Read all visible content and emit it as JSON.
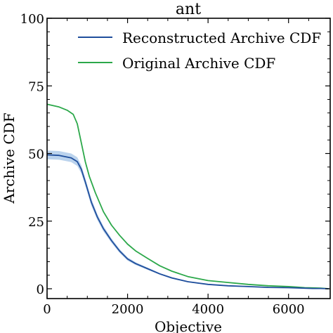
{
  "chart_data": {
    "type": "line",
    "title": "ant",
    "xlabel": "Objective",
    "ylabel": "Archive CDF",
    "xlim": [
      0,
      7000
    ],
    "ylim": [
      0,
      100
    ],
    "x_ticks": [
      "0",
      "2000",
      "4000",
      "6000"
    ],
    "y_ticks": [
      "0",
      "25",
      "50",
      "75",
      "100"
    ],
    "legend_position": "top-right",
    "grid": false,
    "series": [
      {
        "name": "Reconstructed Archive CDF",
        "color": "#1f4e9c",
        "band_color": "#aac8e8",
        "band_halfwidth": [
          1.6,
          1.6,
          1.6,
          1.6,
          1.5,
          1.4,
          1.3,
          1.1,
          1.0,
          0.8,
          0.7,
          0.6,
          0.5,
          0.4,
          0.3,
          0.3,
          0.2,
          0.2,
          0.2,
          0.2,
          0.1,
          0.1,
          0.1,
          0.1,
          0.1,
          0.1,
          0.1
        ],
        "x": [
          0,
          300,
          600,
          750,
          850,
          950,
          1100,
          1250,
          1400,
          1600,
          1800,
          2000,
          2200,
          2500,
          2800,
          3100,
          3500,
          4000,
          4500,
          5000,
          5500,
          6000,
          6200,
          6400,
          6600,
          6800,
          7000
        ],
        "values": [
          49.5,
          49.3,
          48.4,
          47.0,
          44.2,
          39.5,
          32.0,
          26.5,
          22.2,
          17.8,
          14.0,
          11.0,
          9.3,
          7.4,
          5.5,
          4.0,
          2.6,
          1.6,
          1.1,
          0.8,
          0.5,
          0.4,
          0.3,
          0.2,
          0.1,
          0.1,
          0.0
        ]
      },
      {
        "name": "Original Archive CDF",
        "color": "#2ca84a",
        "x": [
          0,
          300,
          500,
          650,
          750,
          850,
          950,
          1050,
          1200,
          1400,
          1600,
          1800,
          2000,
          2200,
          2500,
          2800,
          3100,
          3500,
          4000,
          4500,
          5000,
          5500,
          6000,
          6200,
          6400,
          6600,
          6800,
          7000
        ],
        "values": [
          68.2,
          67.2,
          66.0,
          64.5,
          61.0,
          54.0,
          47.0,
          41.5,
          35.5,
          28.5,
          23.5,
          19.8,
          16.5,
          14.0,
          11.2,
          8.5,
          6.5,
          4.5,
          3.0,
          2.3,
          1.6,
          1.1,
          0.8,
          0.6,
          0.4,
          0.3,
          0.2,
          0.0
        ]
      }
    ]
  }
}
